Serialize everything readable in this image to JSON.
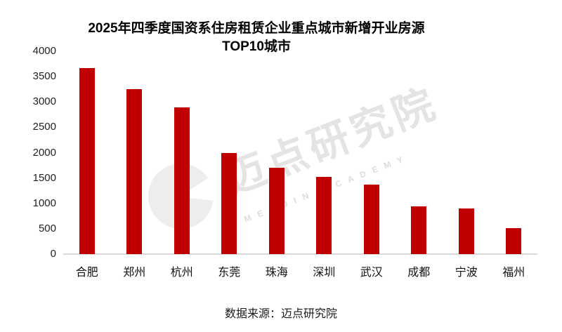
{
  "title": {
    "line1": "2025年四季度国资系住房租赁企业重点城市新增开业房源",
    "line2": "TOP10城市"
  },
  "source": "数据来源：迈点研究院",
  "watermark": {
    "cn": "迈点研究院",
    "en": "MEADIN ACADEMY",
    "logo": "tower-icon"
  },
  "colors": {
    "bar": "#c00000",
    "axis_line": "#d9d9d9",
    "text": "#1a1a1a",
    "watermark_gray": "#e4e4e4"
  },
  "chart_data": {
    "type": "bar",
    "title": "2025年四季度国资系住房租赁企业重点城市新增开业房源 TOP10城市",
    "categories": [
      "合肥",
      "郑州",
      "杭州",
      "东莞",
      "珠海",
      "深圳",
      "武汉",
      "成都",
      "宁波",
      "福州"
    ],
    "values": [
      3670,
      3250,
      2890,
      1990,
      1700,
      1520,
      1370,
      940,
      900,
      510
    ],
    "xlabel": "",
    "ylabel": "",
    "ylim": [
      0,
      4000
    ],
    "yticks": [
      0,
      500,
      1000,
      1500,
      2000,
      2500,
      3000,
      3500,
      4000
    ],
    "grid": false,
    "legend": false,
    "source": "数据来源：迈点研究院"
  }
}
